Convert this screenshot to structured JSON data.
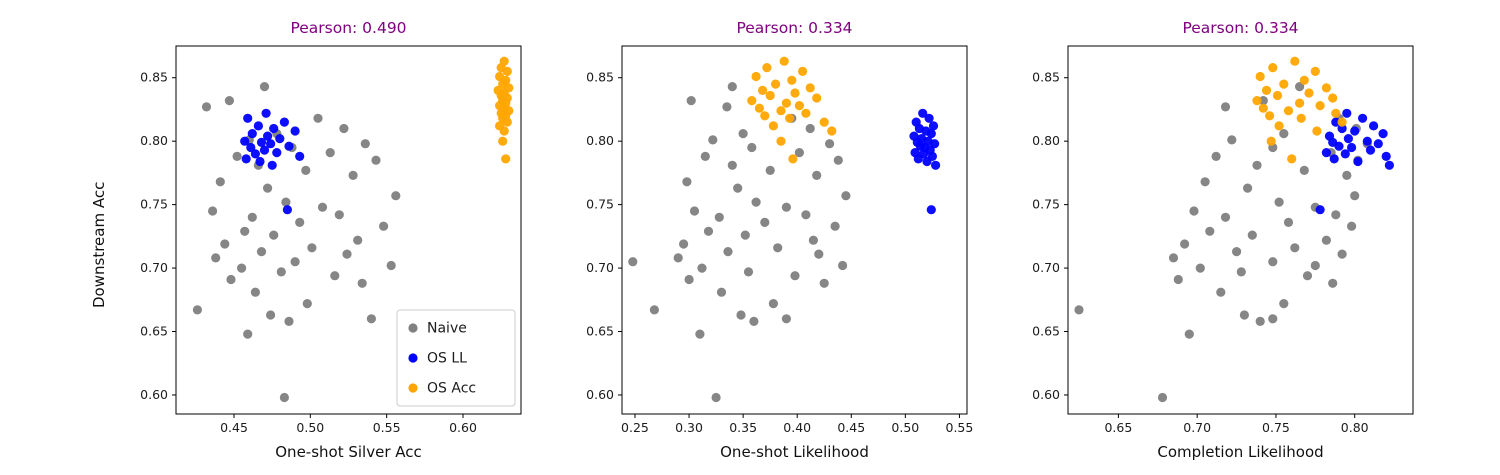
{
  "chart_data": {
    "type": "scatter",
    "ylabel": "Downstream Acc",
    "ylim": [
      0.585,
      0.875
    ],
    "yticks": [
      0.6,
      0.65,
      0.7,
      0.75,
      0.8,
      0.85
    ],
    "series": [
      {
        "key": "naive",
        "label": "Naive",
        "color": "#808080"
      },
      {
        "key": "os_ll",
        "label": "OS LL",
        "color": "#0000ff"
      },
      {
        "key": "os_acc",
        "label": "OS Acc",
        "color": "#ffa500"
      }
    ],
    "legend": {
      "chart": 0,
      "location": "lower right"
    },
    "y": {
      "naive": [
        0.843,
        0.832,
        0.827,
        0.818,
        0.81,
        0.806,
        0.801,
        0.798,
        0.795,
        0.791,
        0.788,
        0.785,
        0.781,
        0.777,
        0.773,
        0.768,
        0.763,
        0.757,
        0.752,
        0.748,
        0.745,
        0.742,
        0.74,
        0.736,
        0.733,
        0.729,
        0.726,
        0.722,
        0.719,
        0.716,
        0.713,
        0.711,
        0.708,
        0.705,
        0.702,
        0.7,
        0.697,
        0.694,
        0.691,
        0.688,
        0.681,
        0.672,
        0.667,
        0.663,
        0.66,
        0.648,
        0.658,
        0.598
      ],
      "os_ll": [
        0.822,
        0.818,
        0.815,
        0.812,
        0.81,
        0.808,
        0.806,
        0.804,
        0.802,
        0.8,
        0.799,
        0.798,
        0.796,
        0.795,
        0.793,
        0.791,
        0.79,
        0.788,
        0.786,
        0.784,
        0.781,
        0.746
      ],
      "os_acc": [
        0.863,
        0.858,
        0.855,
        0.851,
        0.848,
        0.845,
        0.842,
        0.84,
        0.838,
        0.836,
        0.834,
        0.832,
        0.83,
        0.828,
        0.826,
        0.824,
        0.822,
        0.82,
        0.818,
        0.815,
        0.812,
        0.808,
        0.8,
        0.786
      ]
    },
    "charts": [
      {
        "title": "Pearson: 0.490",
        "pearson": 0.49,
        "xlabel": "One-shot Silver Acc",
        "xlim": [
          0.412,
          0.638
        ],
        "xticks": [
          0.45,
          0.5,
          0.55,
          0.6
        ],
        "x": {
          "naive": [
            0.47,
            0.447,
            0.432,
            0.505,
            0.522,
            0.478,
            0.46,
            0.536,
            0.488,
            0.513,
            0.452,
            0.543,
            0.466,
            0.497,
            0.528,
            0.441,
            0.472,
            0.556,
            0.484,
            0.508,
            0.436,
            0.519,
            0.462,
            0.493,
            0.548,
            0.457,
            0.476,
            0.531,
            0.444,
            0.501,
            0.468,
            0.524,
            0.438,
            0.49,
            0.553,
            0.455,
            0.481,
            0.516,
            0.448,
            0.534,
            0.464,
            0.498,
            0.426,
            0.474,
            0.54,
            0.459,
            0.486,
            0.483
          ],
          "os_ll": [
            0.471,
            0.459,
            0.483,
            0.466,
            0.476,
            0.49,
            0.462,
            0.472,
            0.48,
            0.457,
            0.468,
            0.474,
            0.486,
            0.461,
            0.47,
            0.478,
            0.464,
            0.493,
            0.458,
            0.467,
            0.475,
            0.485
          ],
          "os_acc": [
            0.627,
            0.625,
            0.629,
            0.624,
            0.628,
            0.626,
            0.63,
            0.623,
            0.627,
            0.625,
            0.629,
            0.626,
            0.628,
            0.624,
            0.627,
            0.63,
            0.625,
            0.628,
            0.626,
            0.629,
            0.624,
            0.627,
            0.626,
            0.628
          ]
        }
      },
      {
        "title": "Pearson: 0.334",
        "pearson": 0.334,
        "xlabel": "One-shot Likelihood",
        "xlim": [
          0.238,
          0.557
        ],
        "xticks": [
          0.25,
          0.3,
          0.35,
          0.4,
          0.45,
          0.5,
          0.55
        ],
        "x": {
          "naive": [
            0.34,
            0.302,
            0.335,
            0.395,
            0.412,
            0.35,
            0.322,
            0.43,
            0.358,
            0.402,
            0.315,
            0.438,
            0.34,
            0.375,
            0.418,
            0.298,
            0.345,
            0.445,
            0.362,
            0.39,
            0.305,
            0.408,
            0.328,
            0.37,
            0.435,
            0.318,
            0.352,
            0.415,
            0.295,
            0.382,
            0.336,
            0.42,
            0.29,
            0.248,
            0.442,
            0.312,
            0.355,
            0.398,
            0.3,
            0.425,
            0.33,
            0.378,
            0.268,
            0.348,
            0.39,
            0.31,
            0.36,
            0.325
          ],
          "os_ll": [
            0.516,
            0.522,
            0.51,
            0.526,
            0.513,
            0.519,
            0.524,
            0.508,
            0.515,
            0.521,
            0.511,
            0.527,
            0.514,
            0.518,
            0.523,
            0.509,
            0.517,
            0.525,
            0.512,
            0.52,
            0.528,
            0.524
          ],
          "os_acc": [
            0.388,
            0.372,
            0.405,
            0.362,
            0.395,
            0.38,
            0.412,
            0.368,
            0.398,
            0.375,
            0.418,
            0.358,
            0.39,
            0.402,
            0.365,
            0.385,
            0.408,
            0.37,
            0.393,
            0.425,
            0.378,
            0.432,
            0.385,
            0.396
          ]
        }
      },
      {
        "title": "Pearson: 0.334",
        "pearson": 0.334,
        "xlabel": "Completion Likelihood",
        "xlim": [
          0.618,
          0.837
        ],
        "xticks": [
          0.65,
          0.7,
          0.75,
          0.8
        ],
        "x": {
          "naive": [
            0.765,
            0.742,
            0.718,
            0.79,
            0.801,
            0.755,
            0.722,
            0.808,
            0.748,
            0.785,
            0.712,
            0.802,
            0.738,
            0.768,
            0.795,
            0.705,
            0.732,
            0.8,
            0.752,
            0.775,
            0.698,
            0.788,
            0.718,
            0.758,
            0.798,
            0.708,
            0.735,
            0.782,
            0.692,
            0.762,
            0.725,
            0.792,
            0.685,
            0.748,
            0.775,
            0.702,
            0.728,
            0.77,
            0.688,
            0.786,
            0.715,
            0.755,
            0.625,
            0.73,
            0.748,
            0.695,
            0.74,
            0.678
          ],
          "os_ll": [
            0.795,
            0.805,
            0.788,
            0.812,
            0.792,
            0.8,
            0.818,
            0.784,
            0.796,
            0.808,
            0.786,
            0.815,
            0.79,
            0.798,
            0.81,
            0.782,
            0.794,
            0.82,
            0.787,
            0.802,
            0.822,
            0.778
          ],
          "os_acc": [
            0.762,
            0.748,
            0.775,
            0.74,
            0.768,
            0.755,
            0.782,
            0.744,
            0.771,
            0.751,
            0.786,
            0.738,
            0.765,
            0.778,
            0.742,
            0.758,
            0.788,
            0.746,
            0.766,
            0.792,
            0.752,
            0.776,
            0.747,
            0.76
          ]
        }
      }
    ]
  }
}
